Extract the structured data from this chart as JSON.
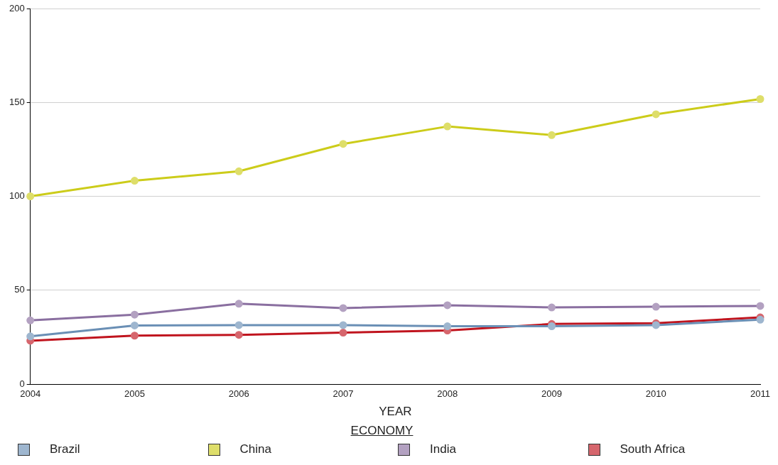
{
  "chart_data": {
    "type": "line",
    "xlabel": "YEAR",
    "legend_title": "ECONOMY",
    "categories": [
      "2004",
      "2005",
      "2006",
      "2007",
      "2008",
      "2009",
      "2010",
      "2011"
    ],
    "series": [
      {
        "name": "Brazil",
        "color": "#6a8fb5",
        "values": [
          25.4,
          31.2,
          31.4,
          31.4,
          30.8,
          30.8,
          31.4,
          34.3
        ]
      },
      {
        "name": "China",
        "color": "#cccc1a",
        "values": [
          100,
          108.3,
          113.3,
          127.9,
          137.2,
          132.6,
          143.7,
          151.8
        ]
      },
      {
        "name": "India",
        "color": "#8a6fa0",
        "values": [
          33.9,
          37,
          42.8,
          40.5,
          42,
          40.8,
          41.2,
          41.6
        ]
      },
      {
        "name": "South Africa",
        "color": "#c0141e",
        "values": [
          23.1,
          25.8,
          26.2,
          27.4,
          28.5,
          32,
          32.4,
          35.5
        ]
      }
    ],
    "ylim": [
      0,
      200
    ],
    "yticks": [
      0,
      50,
      100,
      150,
      200
    ],
    "grid": "y",
    "legend": "bottom",
    "marker": "circle",
    "line_style": "solid"
  }
}
